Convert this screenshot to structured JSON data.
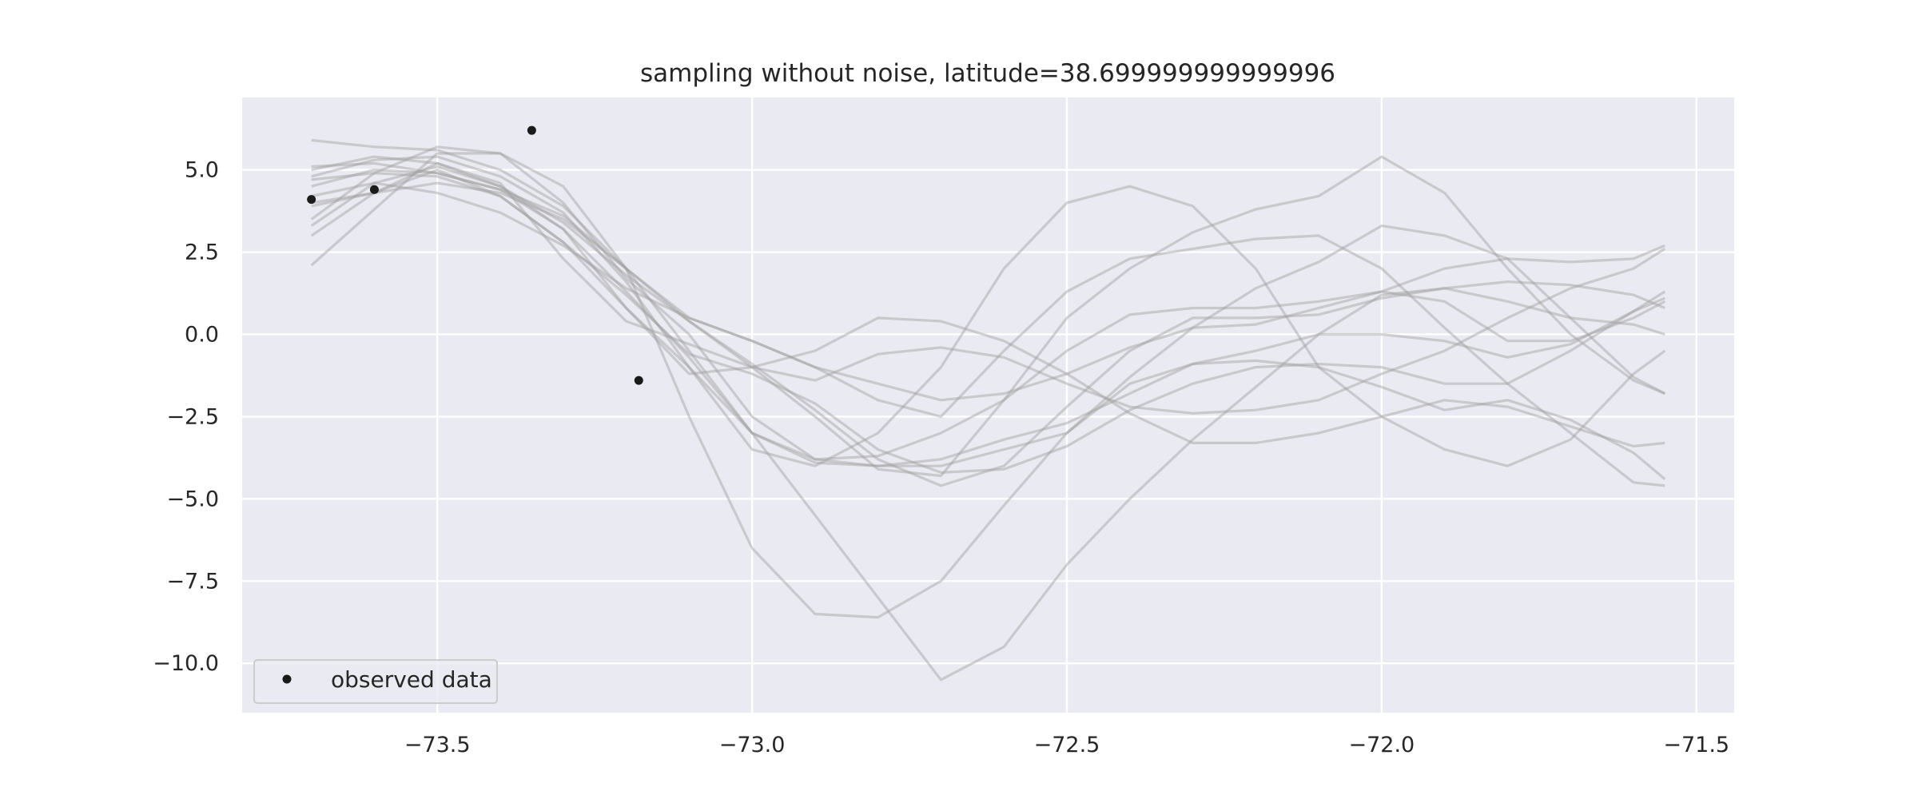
{
  "chart_data": {
    "type": "line",
    "title": "sampling without noise, latitude=38.699999999999996",
    "xlabel": "",
    "ylabel": "",
    "xlim": [
      -73.81,
      -71.44
    ],
    "ylim": [
      -11.5,
      7.2
    ],
    "xticks": [
      -73.5,
      -73.0,
      -72.5,
      -72.0,
      -71.5
    ],
    "xtick_labels": [
      "−73.5",
      "−73.0",
      "−72.5",
      "−72.0",
      "−71.5"
    ],
    "yticks": [
      5.0,
      2.5,
      0.0,
      -2.5,
      -5.0,
      -7.5,
      -10.0
    ],
    "ytick_labels": [
      "5.0",
      "2.5",
      "0.0",
      "−2.5",
      "−5.0",
      "−7.5",
      "−10.0"
    ],
    "grid": true,
    "legend_position": "lower-left",
    "legend_label": "observed data",
    "colors": {
      "background": "#eaeaf2",
      "grid": "#ffffff",
      "samples": "#a0a0a0",
      "points": "#1a1a1a"
    },
    "sample_x": [
      -73.7,
      -73.6,
      -73.5,
      -73.4,
      -73.3,
      -73.2,
      -73.1,
      -73.0,
      -72.9,
      -72.8,
      -72.7,
      -72.6,
      -72.5,
      -72.4,
      -72.3,
      -72.2,
      -72.1,
      -72.0,
      -71.9,
      -71.8,
      -71.7,
      -71.6,
      -71.55
    ],
    "samples": [
      {
        "values": [
          5.9,
          5.7,
          5.6,
          5.0,
          3.9,
          2.0,
          -0.5,
          -3.0,
          -5.5,
          -8.0,
          -10.5,
          -9.5,
          -7.0,
          -5.0,
          -3.2,
          -1.6,
          0.0,
          1.2,
          1.4,
          1.0,
          0.5,
          0.3,
          0.0
        ]
      },
      {
        "values": [
          2.1,
          3.8,
          5.5,
          5.5,
          4.5,
          2.0,
          -2.5,
          -6.5,
          -8.5,
          -8.6,
          -7.5,
          -5.2,
          -3.0,
          -1.3,
          0.2,
          1.4,
          2.2,
          3.3,
          3.0,
          2.3,
          0.5,
          -1.3,
          -1.8
        ]
      },
      {
        "values": [
          4.0,
          4.3,
          5.0,
          4.2,
          2.8,
          0.8,
          -1.0,
          -3.5,
          -4.0,
          -3.0,
          -1.0,
          2.0,
          4.0,
          4.5,
          3.9,
          2.0,
          -1.0,
          -2.5,
          -3.5,
          -4.0,
          -3.2,
          -1.2,
          -0.5
        ]
      },
      {
        "values": [
          3.9,
          4.3,
          4.6,
          4.3,
          3.5,
          2.0,
          0.5,
          -0.2,
          -1.0,
          -2.0,
          -2.5,
          -0.5,
          1.3,
          2.3,
          2.6,
          2.9,
          3.0,
          2.0,
          0.2,
          -1.5,
          -3.0,
          -4.5,
          -4.6
        ]
      },
      {
        "values": [
          5.1,
          5.2,
          4.9,
          4.4,
          3.6,
          2.0,
          0.4,
          -1.0,
          -2.5,
          -4.1,
          -4.3,
          -2.0,
          0.5,
          2.0,
          3.1,
          3.8,
          4.2,
          5.4,
          4.3,
          2.0,
          0.0,
          -1.4,
          -1.8
        ]
      },
      {
        "values": [
          4.7,
          4.9,
          4.8,
          4.2,
          2.8,
          1.2,
          -0.6,
          -1.2,
          -2.1,
          -3.5,
          -4.2,
          -4.1,
          -3.4,
          -2.3,
          -1.5,
          -1.0,
          -0.9,
          -1.0,
          -1.5,
          -1.5,
          -0.5,
          0.7,
          1.3
        ]
      },
      {
        "values": [
          4.5,
          5.0,
          4.9,
          4.4,
          3.2,
          0.8,
          -1.2,
          -1.0,
          -0.5,
          0.5,
          0.4,
          -0.2,
          -1.2,
          -2.4,
          -3.3,
          -3.3,
          -3.0,
          -2.5,
          -2.0,
          -2.2,
          -2.8,
          -3.4,
          -3.3
        ]
      },
      {
        "values": [
          3.0,
          4.3,
          5.2,
          4.6,
          2.3,
          0.4,
          -0.3,
          -1.0,
          -1.4,
          -0.6,
          -0.4,
          -0.7,
          -1.5,
          -2.2,
          -2.4,
          -2.3,
          -2.0,
          -1.2,
          -0.5,
          0.5,
          1.4,
          2.0,
          2.6
        ]
      },
      {
        "values": [
          4.8,
          5.3,
          5.4,
          4.8,
          3.7,
          1.6,
          -1.0,
          -3.0,
          -3.8,
          -3.7,
          -3.0,
          -2.0,
          -0.5,
          0.6,
          0.8,
          0.8,
          1.0,
          1.3,
          1.0,
          -0.2,
          -0.2,
          0.5,
          1.0
        ]
      },
      {
        "values": [
          4.2,
          4.6,
          4.3,
          3.7,
          2.7,
          1.4,
          0.5,
          -0.2,
          -1.0,
          -1.5,
          -2.0,
          -1.8,
          -1.2,
          -0.4,
          0.2,
          0.3,
          0.8,
          1.3,
          2.0,
          2.3,
          2.2,
          2.3,
          2.7
        ]
      },
      {
        "values": [
          5.0,
          5.4,
          5.2,
          4.5,
          3.4,
          1.8,
          0.4,
          -0.9,
          -2.3,
          -3.8,
          -4.6,
          -4.0,
          -2.2,
          -0.5,
          0.5,
          0.5,
          0.6,
          1.1,
          1.4,
          1.6,
          1.5,
          1.2,
          0.8
        ]
      },
      {
        "values": [
          3.3,
          4.6,
          5.1,
          4.5,
          3.2,
          1.3,
          -0.7,
          -3.0,
          -3.9,
          -4.0,
          -3.8,
          -3.2,
          -2.7,
          -1.8,
          -0.9,
          -0.5,
          0.0,
          0.0,
          -0.2,
          -0.7,
          -0.3,
          0.7,
          1.1
        ]
      },
      {
        "values": [
          3.5,
          4.9,
          5.7,
          5.5,
          4.0,
          1.7,
          0.0,
          -2.5,
          -3.8,
          -4.0,
          -4.0,
          -3.5,
          -3.0,
          -1.5,
          -0.9,
          -0.8,
          -1.0,
          -1.6,
          -2.3,
          -2.0,
          -2.6,
          -3.6,
          -4.4
        ]
      }
    ],
    "observed": {
      "x": [
        -73.7,
        -73.6,
        -73.35,
        -73.18
      ],
      "y": [
        4.1,
        4.4,
        6.2,
        -1.4
      ]
    }
  }
}
